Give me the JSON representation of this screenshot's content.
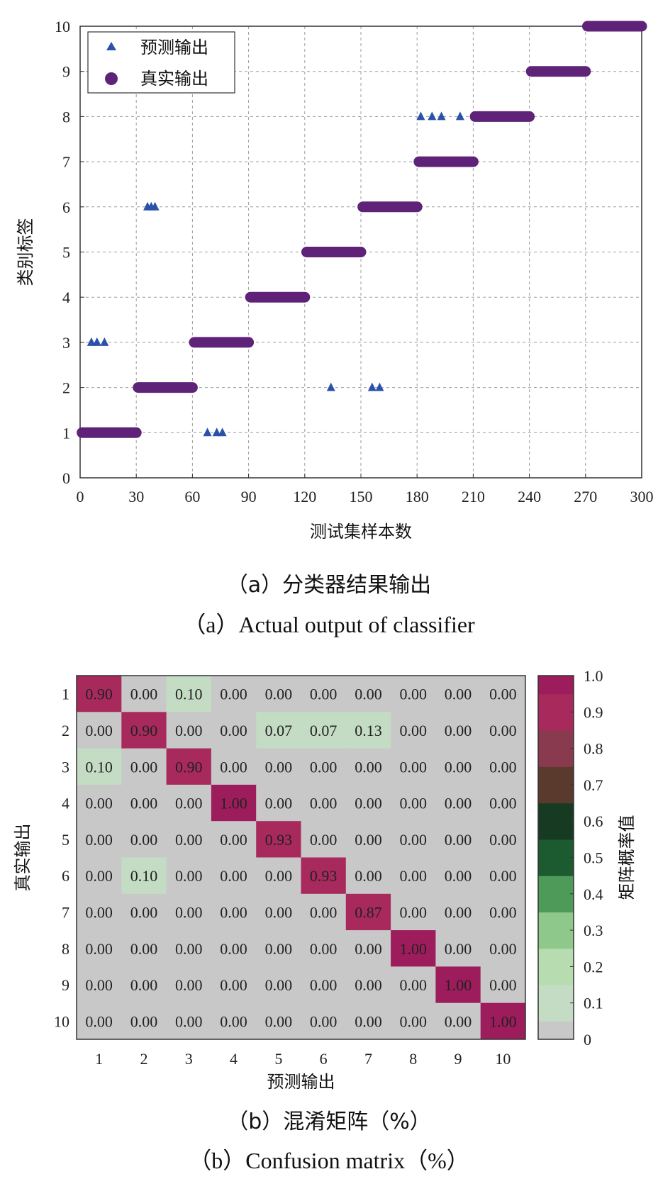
{
  "chart_data": [
    {
      "type": "scatter",
      "title": "",
      "xlabel": "测试集样本数",
      "ylabel": "类别标签",
      "xlim": [
        0,
        300
      ],
      "ylim": [
        0,
        10
      ],
      "xticks": [
        "0",
        "30",
        "60",
        "90",
        "120",
        "150",
        "180",
        "210",
        "240",
        "270",
        "300"
      ],
      "yticks": [
        "0",
        "1",
        "2",
        "3",
        "4",
        "5",
        "6",
        "7",
        "8",
        "9",
        "10"
      ],
      "grid": true,
      "legend_position": "top-left",
      "series": [
        {
          "name": "预测输出",
          "marker": "triangle",
          "color": "#2a52a8",
          "points": [
            [
              6,
              3
            ],
            [
              9,
              3
            ],
            [
              13,
              3
            ],
            [
              36,
              6
            ],
            [
              38,
              6
            ],
            [
              40,
              6
            ],
            [
              68,
              1
            ],
            [
              73,
              1
            ],
            [
              76,
              1
            ],
            [
              134,
              2
            ],
            [
              156,
              2
            ],
            [
              160,
              2
            ],
            [
              182,
              8
            ],
            [
              188,
              8
            ],
            [
              193,
              8
            ],
            [
              203,
              8
            ]
          ]
        },
        {
          "name": "真实输出",
          "marker": "circle",
          "color": "#5e2378",
          "segments": [
            {
              "from": 1,
              "to": 30,
              "value": 1
            },
            {
              "from": 31,
              "to": 60,
              "value": 2
            },
            {
              "from": 61,
              "to": 90,
              "value": 3
            },
            {
              "from": 91,
              "to": 120,
              "value": 4
            },
            {
              "from": 121,
              "to": 150,
              "value": 5
            },
            {
              "from": 151,
              "to": 180,
              "value": 6
            },
            {
              "from": 181,
              "to": 210,
              "value": 7
            },
            {
              "from": 211,
              "to": 240,
              "value": 8
            },
            {
              "from": 241,
              "to": 270,
              "value": 9
            },
            {
              "from": 271,
              "to": 300,
              "value": 10
            }
          ]
        }
      ]
    },
    {
      "type": "heatmap",
      "title": "",
      "xlabel": "预测输出",
      "ylabel": "真实输出",
      "colorbar_label": "矩阵概率值",
      "colorbar_ticks": [
        "0",
        "0.1",
        "0.2",
        "0.3",
        "0.4",
        "0.5",
        "0.6",
        "0.7",
        "0.8",
        "0.9",
        "1.0"
      ],
      "x_categories": [
        "1",
        "2",
        "3",
        "4",
        "5",
        "6",
        "7",
        "8",
        "9",
        "10"
      ],
      "y_categories": [
        "1",
        "2",
        "3",
        "4",
        "5",
        "6",
        "7",
        "8",
        "9",
        "10"
      ],
      "values": [
        [
          0.9,
          0.0,
          0.1,
          0.0,
          0.0,
          0.0,
          0.0,
          0.0,
          0.0,
          0.0
        ],
        [
          0.0,
          0.9,
          0.0,
          0.0,
          0.07,
          0.07,
          0.13,
          0.0,
          0.0,
          0.0
        ],
        [
          0.1,
          0.0,
          0.9,
          0.0,
          0.0,
          0.0,
          0.0,
          0.0,
          0.0,
          0.0
        ],
        [
          0.0,
          0.0,
          0.0,
          1.0,
          0.0,
          0.0,
          0.0,
          0.0,
          0.0,
          0.0
        ],
        [
          0.0,
          0.0,
          0.0,
          0.0,
          0.93,
          0.0,
          0.0,
          0.0,
          0.0,
          0.0
        ],
        [
          0.0,
          0.1,
          0.0,
          0.0,
          0.0,
          0.93,
          0.0,
          0.0,
          0.0,
          0.0
        ],
        [
          0.0,
          0.0,
          0.0,
          0.0,
          0.0,
          0.0,
          0.87,
          0.0,
          0.0,
          0.0
        ],
        [
          0.0,
          0.0,
          0.0,
          0.0,
          0.0,
          0.0,
          0.0,
          1.0,
          0.0,
          0.0
        ],
        [
          0.0,
          0.0,
          0.0,
          0.0,
          0.0,
          0.0,
          0.0,
          0.0,
          1.0,
          0.0
        ],
        [
          0.0,
          0.0,
          0.0,
          0.0,
          0.0,
          0.0,
          0.0,
          0.0,
          0.0,
          1.0
        ]
      ],
      "colorscale": [
        "#c8c8c8",
        "#c4dcc4",
        "#b6dcb0",
        "#8ec88a",
        "#4e9a58",
        "#1c5a30",
        "#163a22",
        "#5a3a2c",
        "#8a3a4e",
        "#a82a5c",
        "#9c1c5c"
      ]
    }
  ],
  "captions": {
    "a_cn": "（a）分类器结果输出",
    "a_en": "（a）Actual output of classifier",
    "b_cn": "（b）混淆矩阵（%）",
    "b_en": "（b）Confusion matrix（%）"
  }
}
